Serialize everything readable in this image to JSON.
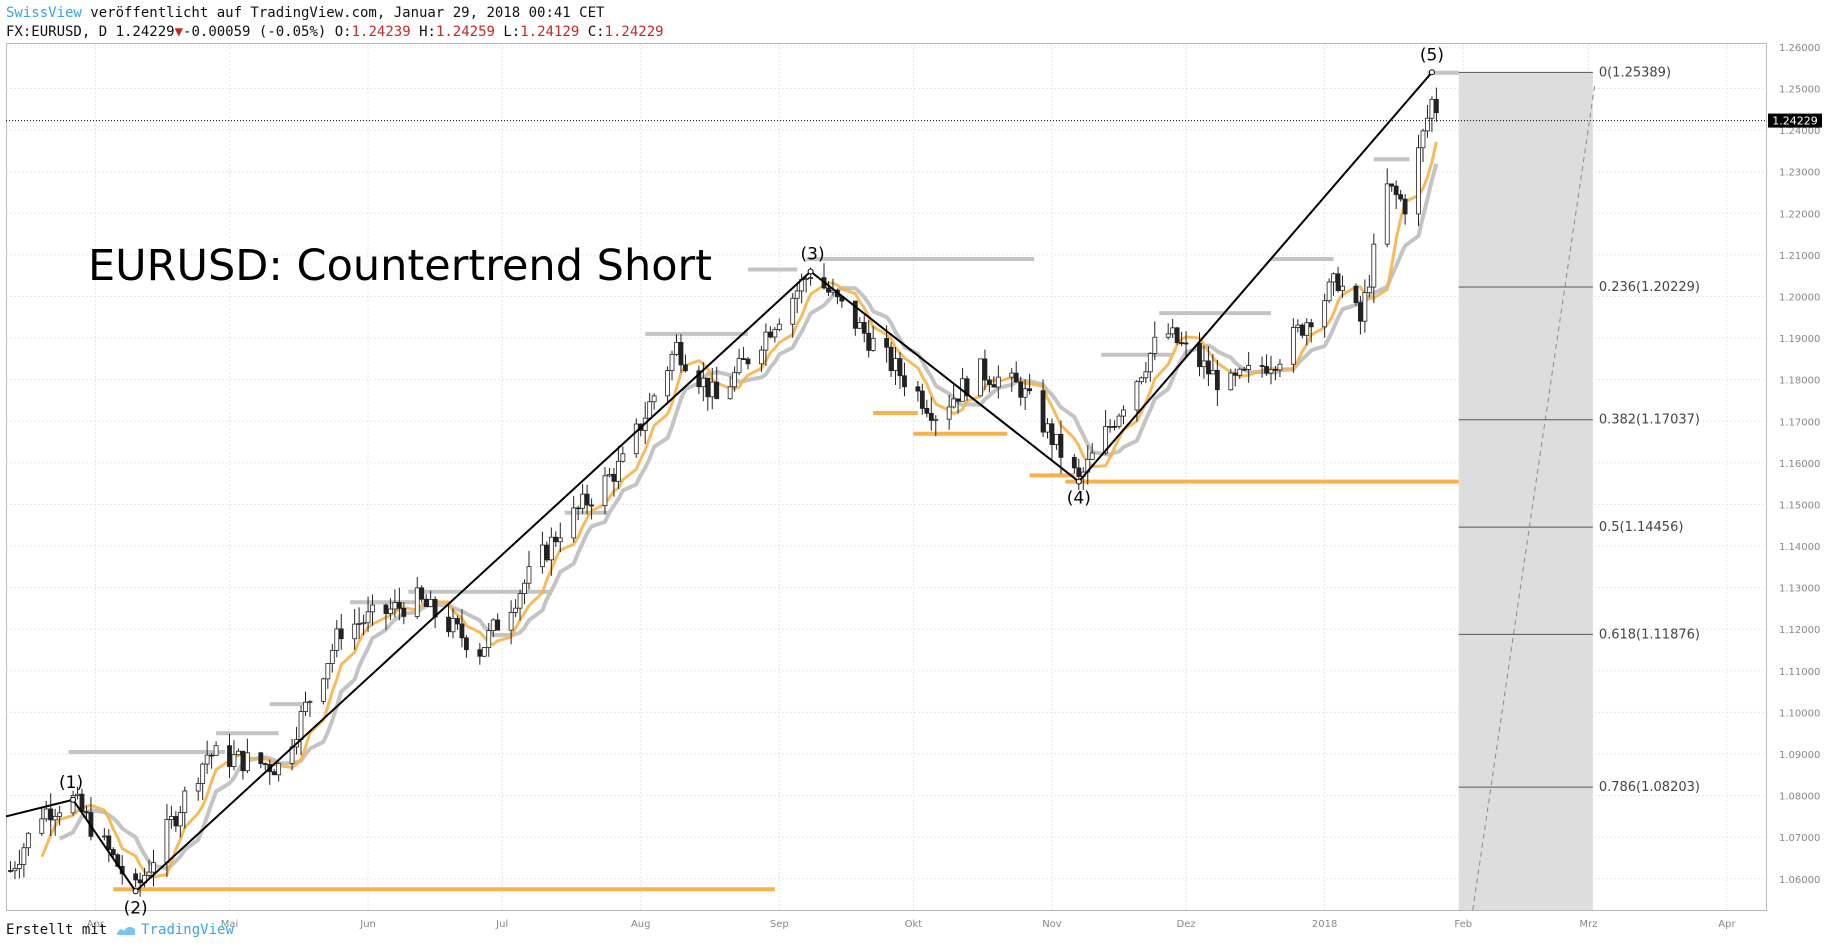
{
  "header": {
    "brand": "SwissView",
    "published": " veröffentlicht auf TradingView.com, Januar 29, 2018 00:41 CET",
    "symbol": "FX:EURUSD, D ",
    "last": "1.24229",
    "change": "-0.00059 (-0.05%)",
    "o_label": " O:",
    "o": "1.24239",
    "h_label": " H:",
    "h": "1.24259",
    "l_label": " L:",
    "l": "1.24129",
    "c_label": " C:",
    "c": "1.24229"
  },
  "footer": {
    "created_with": "Erstellt mit",
    "brand": "TradingView"
  },
  "colors": {
    "orange": "#f7b24d",
    "gray_line": "#c4c4c4",
    "wave": "#000000",
    "fib_zone": "#d9d9d9",
    "bar": "#222222"
  },
  "chart_data": {
    "type": "candlestick",
    "title": "EURUSD: Countertrend Short",
    "symbol": "EURUSD",
    "timeframe": "D",
    "grid": true,
    "ylim": [
      1.0525,
      1.2607
    ],
    "y_ticks": [
      "1.06000",
      "1.07000",
      "1.08000",
      "1.09000",
      "1.10000",
      "1.11000",
      "1.12000",
      "1.13000",
      "1.14000",
      "1.15000",
      "1.16000",
      "1.17000",
      "1.18000",
      "1.19000",
      "1.20000",
      "1.21000",
      "1.22000",
      "1.23000",
      "1.24000",
      "1.25000",
      "1.26000"
    ],
    "x_ticks": [
      "Apr",
      "Mai",
      "Jun",
      "Jul",
      "Aug",
      "Sep",
      "Okt",
      "Nov",
      "Dez",
      "2018",
      "Feb",
      "Mrz",
      "Apr"
    ],
    "last_price": "1.24229",
    "wave_points": [
      {
        "label": "(1)",
        "date": "2017-03-27",
        "price": 1.079
      },
      {
        "label": "(2)",
        "date": "2017-04-10",
        "price": 1.057
      },
      {
        "label": "(3)",
        "date": "2017-09-08",
        "price": 1.206
      },
      {
        "label": "(4)",
        "date": "2017-11-07",
        "price": 1.1555
      },
      {
        "label": "(5)",
        "date": "2018-01-25",
        "price": 1.2539
      }
    ],
    "fibonacci_retracement": [
      {
        "level": "0",
        "price": "1.25389"
      },
      {
        "level": "0.236",
        "price": "1.20229"
      },
      {
        "level": "0.382",
        "price": "1.17037"
      },
      {
        "level": "0.5",
        "price": "1.14456"
      },
      {
        "level": "0.618",
        "price": "1.11876"
      },
      {
        "level": "0.786",
        "price": "1.08203"
      }
    ],
    "support_lines": [
      {
        "color": "orange",
        "price": 1.0575
      },
      {
        "color": "orange",
        "price": 1.1555
      }
    ],
    "resistance_lines": [
      {
        "color": "gray",
        "price": 1.0905
      },
      {
        "color": "gray",
        "price": 1.209
      },
      {
        "color": "gray",
        "price": 1.196
      }
    ],
    "swing_levels": {
      "gray": [
        {
          "start": "2017-03-26",
          "end": "2017-04-30",
          "price": 1.0905
        },
        {
          "start": "2017-04-28",
          "end": "2017-05-12",
          "price": 1.095
        },
        {
          "start": "2017-05-10",
          "end": "2017-05-18",
          "price": 1.102
        },
        {
          "start": "2017-05-28",
          "end": "2017-06-12",
          "price": 1.1265
        },
        {
          "start": "2017-06-10",
          "end": "2017-06-25",
          "price": 1.129
        },
        {
          "start": "2017-06-24",
          "end": "2017-07-12",
          "price": 1.129
        },
        {
          "start": "2017-07-15",
          "end": "2017-07-25",
          "price": 1.148
        },
        {
          "start": "2017-08-02",
          "end": "2017-08-25",
          "price": 1.191
        },
        {
          "start": "2017-08-25",
          "end": "2017-09-05",
          "price": 1.2065
        },
        {
          "start": "2017-09-07",
          "end": "2017-10-28",
          "price": 1.209
        },
        {
          "start": "2017-11-12",
          "end": "2017-11-28",
          "price": 1.186
        },
        {
          "start": "2017-11-25",
          "end": "2017-12-20",
          "price": 1.196
        },
        {
          "start": "2017-12-20",
          "end": "2018-01-03",
          "price": 1.209
        },
        {
          "start": "2018-01-12",
          "end": "2018-01-20",
          "price": 1.233
        },
        {
          "start": "2018-01-24",
          "end": "2018-01-31",
          "price": 1.2538
        }
      ],
      "orange": [
        {
          "start": "2017-04-05",
          "end": "2017-08-31",
          "price": 1.0575
        },
        {
          "start": "2017-09-22",
          "end": "2017-10-02",
          "price": 1.172
        },
        {
          "start": "2017-10-01",
          "end": "2017-10-22",
          "price": 1.167
        },
        {
          "start": "2017-10-27",
          "end": "2017-11-06",
          "price": 1.157
        },
        {
          "start": "2017-11-04",
          "end": "2018-01-31",
          "price": 1.1555
        }
      ]
    },
    "fib_zone": {
      "start": "2018-01-31",
      "end": "2018-03-02",
      "from": 1.2539,
      "to": 1.0525
    },
    "projection_line": {
      "start": "2018-01-31",
      "end": "2018-03-02",
      "from": 1.0525,
      "to": 1.251
    }
  }
}
